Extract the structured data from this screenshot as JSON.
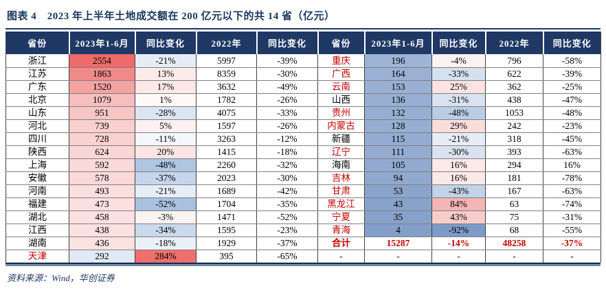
{
  "figure": {
    "title": "图表 4　2023 年上半年土地成交额在 200 亿元以下的共 14 省（亿元）",
    "source": "资料来源：Wind，华创证券"
  },
  "colors": {
    "title_navy": "#17365D",
    "header_bg": "#1F3864",
    "header_text": "#FFFFFF",
    "accent_red_text": "#C00000",
    "scale_red_max": "#ED6B6A",
    "scale_blue_min": "#7E9BC7"
  },
  "chart_data": {
    "type": "table",
    "title": "2023 年上半年土地成交额在 200 亿元以下的共 14 省（亿元）",
    "columns": [
      "省份",
      "2023年1-6月",
      "同比变化",
      "2022年",
      "同比变化",
      "省份",
      "2023年1-6月",
      "同比变化",
      "2022年",
      "同比变化"
    ],
    "rows": [
      [
        {
          "t": "浙江"
        },
        {
          "t": "2554",
          "bg": "#ED6B6A"
        },
        {
          "t": "-21%",
          "bg": "#E7EDF6"
        },
        {
          "t": "5997"
        },
        {
          "t": "-39%"
        },
        {
          "t": "重庆",
          "c": "#C00000"
        },
        {
          "t": "196",
          "bg": "#9DB4D6"
        },
        {
          "t": "-4%",
          "bg": "#FBF2F2"
        },
        {
          "t": "796"
        },
        {
          "t": "-58%"
        }
      ],
      [
        {
          "t": "江苏"
        },
        {
          "t": "1863",
          "bg": "#F08A89"
        },
        {
          "t": "13%",
          "bg": "#FBEBEA"
        },
        {
          "t": "8359"
        },
        {
          "t": "-30%"
        },
        {
          "t": "广西",
          "c": "#C00000"
        },
        {
          "t": "164",
          "bg": "#9AB1D4"
        },
        {
          "t": "-33%",
          "bg": "#D6E1EF"
        },
        {
          "t": "622"
        },
        {
          "t": "-39%"
        }
      ],
      [
        {
          "t": "广东"
        },
        {
          "t": "1520",
          "bg": "#F3A3A2"
        },
        {
          "t": "17%",
          "bg": "#FBE8E7"
        },
        {
          "t": "3632"
        },
        {
          "t": "-49%"
        },
        {
          "t": "云南",
          "c": "#C00000"
        },
        {
          "t": "153",
          "bg": "#99B0D4"
        },
        {
          "t": "25%",
          "bg": "#FAE3E2"
        },
        {
          "t": "362"
        },
        {
          "t": "-25%"
        }
      ],
      [
        {
          "t": "北京"
        },
        {
          "t": "1079",
          "bg": "#F6BFBE"
        },
        {
          "t": "1%",
          "bg": "#FEF8F8"
        },
        {
          "t": "1782"
        },
        {
          "t": "-26%"
        },
        {
          "t": "山西"
        },
        {
          "t": "136",
          "bg": "#97AFD3"
        },
        {
          "t": "-31%",
          "bg": "#D9E3F0"
        },
        {
          "t": "438"
        },
        {
          "t": "-47%"
        }
      ],
      [
        {
          "t": "山东"
        },
        {
          "t": "951",
          "bg": "#F7C6C5"
        },
        {
          "t": "-28%",
          "bg": "#DCE6F3"
        },
        {
          "t": "4075"
        },
        {
          "t": "-33%"
        },
        {
          "t": "贵州",
          "c": "#C00000"
        },
        {
          "t": "132",
          "bg": "#96AED2"
        },
        {
          "t": "-48%",
          "bg": "#BACDE5"
        },
        {
          "t": "1053"
        },
        {
          "t": "-48%"
        }
      ],
      [
        {
          "t": "河北"
        },
        {
          "t": "739",
          "bg": "#F9D0CF"
        },
        {
          "t": "5%",
          "bg": "#FCF1F0"
        },
        {
          "t": "1597"
        },
        {
          "t": "-26%"
        },
        {
          "t": "内蒙古",
          "c": "#C00000"
        },
        {
          "t": "128",
          "bg": "#96AED2"
        },
        {
          "t": "29%",
          "bg": "#F9DEDD"
        },
        {
          "t": "242"
        },
        {
          "t": "-23%"
        }
      ],
      [
        {
          "t": "四川"
        },
        {
          "t": "728",
          "bg": "#F9D1D0"
        },
        {
          "t": "-11%",
          "bg": "#F3F6FA"
        },
        {
          "t": "3263"
        },
        {
          "t": "-12%"
        },
        {
          "t": "新疆"
        },
        {
          "t": "115",
          "bg": "#94ACD1"
        },
        {
          "t": "-21%",
          "bg": "#E7EDF6"
        },
        {
          "t": "318"
        },
        {
          "t": "-45%"
        }
      ],
      [
        {
          "t": "陕西"
        },
        {
          "t": "624",
          "bg": "#FAD7D6"
        },
        {
          "t": "20%",
          "bg": "#FAE5E4"
        },
        {
          "t": "1415"
        },
        {
          "t": "-18%"
        },
        {
          "t": "辽宁",
          "c": "#C00000"
        },
        {
          "t": "111",
          "bg": "#93ABD1"
        },
        {
          "t": "-30%",
          "bg": "#D9E3F0"
        },
        {
          "t": "393"
        },
        {
          "t": "-63%"
        }
      ],
      [
        {
          "t": "上海"
        },
        {
          "t": "592",
          "bg": "#FAD9D8"
        },
        {
          "t": "-48%",
          "bg": "#AFC6E2"
        },
        {
          "t": "2260"
        },
        {
          "t": "-32%"
        },
        {
          "t": "海南"
        },
        {
          "t": "105",
          "bg": "#92AAD0"
        },
        {
          "t": "16%",
          "bg": "#FAE9E8"
        },
        {
          "t": "294"
        },
        {
          "t": "16%"
        }
      ],
      [
        {
          "t": "安徽"
        },
        {
          "t": "578",
          "bg": "#FADAD9"
        },
        {
          "t": "-37%",
          "bg": "#C6D5EA"
        },
        {
          "t": "2023"
        },
        {
          "t": "-30%"
        },
        {
          "t": "吉林",
          "c": "#C00000"
        },
        {
          "t": "94",
          "bg": "#90A9CF"
        },
        {
          "t": "16%",
          "bg": "#FAE9E8"
        },
        {
          "t": "181"
        },
        {
          "t": "-78%"
        }
      ],
      [
        {
          "t": "河南"
        },
        {
          "t": "493",
          "bg": "#FBDFDE"
        },
        {
          "t": "-21%",
          "bg": "#E7EDF6"
        },
        {
          "t": "1689"
        },
        {
          "t": "-42%"
        },
        {
          "t": "甘肃",
          "c": "#C00000"
        },
        {
          "t": "53",
          "bg": "#8AA4CC"
        },
        {
          "t": "-43%",
          "bg": "#C2D3E8"
        },
        {
          "t": "167"
        },
        {
          "t": "-63%"
        }
      ],
      [
        {
          "t": "福建"
        },
        {
          "t": "473",
          "bg": "#FBE0DF"
        },
        {
          "t": "-52%",
          "bg": "#A9C1E0"
        },
        {
          "t": "1704"
        },
        {
          "t": "-35%"
        },
        {
          "t": "黑龙江",
          "c": "#C00000"
        },
        {
          "t": "43",
          "bg": "#88A3CB"
        },
        {
          "t": "84%",
          "bg": "#F4B5B4"
        },
        {
          "t": "63"
        },
        {
          "t": "-74%"
        }
      ],
      [
        {
          "t": "湖北"
        },
        {
          "t": "458",
          "bg": "#FBE1E0"
        },
        {
          "t": "-3%",
          "bg": "#F9F3F3"
        },
        {
          "t": "1471"
        },
        {
          "t": "-52%"
        },
        {
          "t": "宁夏",
          "c": "#C00000"
        },
        {
          "t": "35",
          "bg": "#87A2CA"
        },
        {
          "t": "43%",
          "bg": "#F7CDCC"
        },
        {
          "t": "75"
        },
        {
          "t": "-31%"
        }
      ],
      [
        {
          "t": "江西"
        },
        {
          "t": "438",
          "bg": "#FBE2E1"
        },
        {
          "t": "-34%",
          "bg": "#CBD9EC"
        },
        {
          "t": "1595"
        },
        {
          "t": "-23%"
        },
        {
          "t": "青海",
          "c": "#C00000"
        },
        {
          "t": "4",
          "bg": "#839EC8"
        },
        {
          "t": "-92%",
          "bg": "#7E9BC7"
        },
        {
          "t": "68"
        },
        {
          "t": "-55%"
        }
      ],
      [
        {
          "t": "湖南"
        },
        {
          "t": "436",
          "bg": "#FBE2E1"
        },
        {
          "t": "-18%",
          "bg": "#EAF0F7"
        },
        {
          "t": "1929"
        },
        {
          "t": "-37%"
        },
        {
          "t": "合计",
          "c": "#C00000",
          "b": true
        },
        {
          "t": "15287",
          "c": "#C00000",
          "b": true
        },
        {
          "t": "-14%",
          "c": "#C00000",
          "b": true
        },
        {
          "t": "48258",
          "c": "#C00000",
          "b": true
        },
        {
          "t": "-37%",
          "c": "#C00000",
          "b": true
        }
      ],
      [
        {
          "t": "天津",
          "c": "#C00000"
        },
        {
          "t": "292",
          "bg": "#E2E9F3"
        },
        {
          "t": "284%",
          "bg": "#ED6F6E"
        },
        {
          "t": "395"
        },
        {
          "t": "-65%"
        },
        {
          "t": "-"
        },
        {
          "t": "-"
        },
        {
          "t": "-"
        },
        {
          "t": "-"
        },
        {
          "t": "-"
        }
      ]
    ]
  }
}
